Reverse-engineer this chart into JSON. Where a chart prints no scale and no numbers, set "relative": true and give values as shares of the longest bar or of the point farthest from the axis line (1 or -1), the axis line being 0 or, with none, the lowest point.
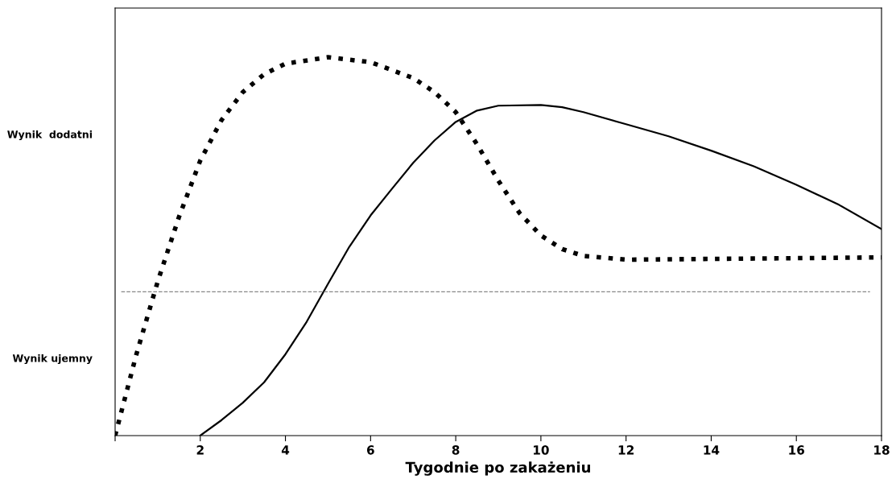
{
  "chart_data": {
    "type": "line",
    "relative": true,
    "xlabel": "Tygodnie po zakażeniu",
    "xlim": [
      0,
      18
    ],
    "xticks": [
      {
        "value": 0,
        "label": null
      },
      2,
      4,
      6,
      8,
      10,
      12,
      14,
      16,
      18
    ],
    "grid": false,
    "legend": false,
    "series": [
      {
        "color": "#000000",
        "line_style": "dotted",
        "x": [
          0,
          0.5,
          1,
          1.5,
          2,
          2.5,
          3,
          3.5,
          4,
          5,
          6,
          7,
          7.5,
          8,
          8.5,
          9,
          9.5,
          10,
          10.5,
          11,
          12,
          14,
          16,
          18
        ],
        "values": [
          0,
          0.215,
          0.407,
          0.578,
          0.727,
          0.834,
          0.908,
          0.955,
          0.983,
          1.0,
          0.987,
          0.945,
          0.908,
          0.855,
          0.77,
          0.674,
          0.588,
          0.529,
          0.493,
          0.475,
          0.465,
          0.467,
          0.469,
          0.471
        ]
      },
      {
        "color": "#000000",
        "line_style": "solid",
        "x": [
          2,
          2.5,
          3,
          3.5,
          4,
          4.5,
          5,
          5.5,
          6,
          6.5,
          7,
          7.5,
          8,
          8.5,
          9,
          10,
          10.5,
          11,
          12,
          13,
          14,
          15,
          16,
          17,
          18
        ],
        "values": [
          0,
          0.041,
          0.087,
          0.141,
          0.215,
          0.301,
          0.401,
          0.499,
          0.582,
          0.652,
          0.721,
          0.78,
          0.829,
          0.859,
          0.872,
          0.874,
          0.868,
          0.855,
          0.823,
          0.791,
          0.753,
          0.712,
          0.663,
          0.61,
          0.546
        ]
      }
    ],
    "ref_lines": [
      {
        "axis": "y",
        "value": 0.38,
        "color": "#888888",
        "line_style": "dashed"
      }
    ],
    "annotations": [
      "Wynik  dodatni",
      "Wynik ujemny"
    ]
  }
}
